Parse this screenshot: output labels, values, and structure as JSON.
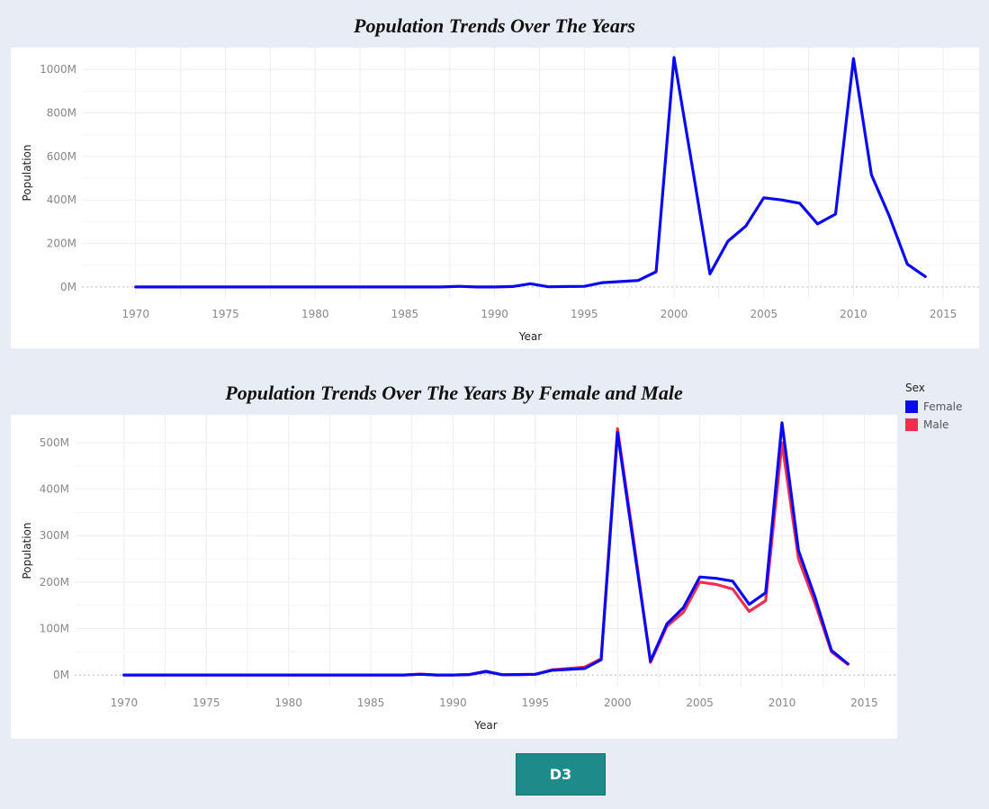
{
  "button": {
    "label": "D3"
  },
  "colors": {
    "female": "#0a0af0",
    "male": "#f03050",
    "background": "#e8ecf4"
  },
  "legend": {
    "title": "Sex",
    "items": [
      {
        "label": "Female",
        "color": "#0a0af0"
      },
      {
        "label": "Male",
        "color": "#f03050"
      }
    ]
  },
  "chart_data": [
    {
      "type": "line",
      "title": "Population Trends Over The Years",
      "xlabel": "Year",
      "ylabel": "Population",
      "xlim": [
        1967,
        2017
      ],
      "ylim": [
        -50000000,
        1100000000
      ],
      "x_ticks": [
        1970,
        1975,
        1980,
        1985,
        1990,
        1995,
        2000,
        2005,
        2010,
        2015
      ],
      "y_ticks": [
        0,
        200000000,
        400000000,
        600000000,
        800000000,
        1000000000
      ],
      "y_tick_labels": [
        "0M",
        "200M",
        "400M",
        "600M",
        "800M",
        "1000M"
      ],
      "grid": true,
      "x": [
        1970,
        1971,
        1972,
        1973,
        1974,
        1975,
        1976,
        1977,
        1978,
        1979,
        1980,
        1981,
        1982,
        1983,
        1984,
        1985,
        1986,
        1987,
        1988,
        1989,
        1990,
        1991,
        1992,
        1993,
        1994,
        1995,
        1996,
        1997,
        1998,
        1999,
        2000,
        2001,
        2002,
        2003,
        2004,
        2005,
        2006,
        2007,
        2008,
        2009,
        2010,
        2011,
        2012,
        2013,
        2014
      ],
      "series": [
        {
          "color": "#0a0af0",
          "values": [
            0,
            0,
            0,
            0,
            0,
            0,
            0,
            0,
            0,
            0,
            0,
            0,
            0,
            0,
            0,
            0,
            0,
            0,
            3000000,
            0,
            0,
            2000000,
            15000000,
            1000000,
            2000000,
            3000000,
            20000000,
            25000000,
            30000000,
            70000000,
            1055000000,
            560000000,
            60000000,
            210000000,
            280000000,
            410000000,
            400000000,
            385000000,
            290000000,
            335000000,
            1050000000,
            515000000,
            325000000,
            105000000,
            48000000
          ]
        }
      ]
    },
    {
      "type": "line",
      "title": "Population Trends Over The Years By Female and Male",
      "xlabel": "Year",
      "ylabel": "Population",
      "xlim": [
        1967,
        2017
      ],
      "ylim": [
        -25000000,
        560000000
      ],
      "x_ticks": [
        1970,
        1975,
        1980,
        1985,
        1990,
        1995,
        2000,
        2005,
        2010,
        2015
      ],
      "y_ticks": [
        0,
        100000000,
        200000000,
        300000000,
        400000000,
        500000000
      ],
      "y_tick_labels": [
        "0M",
        "100M",
        "200M",
        "300M",
        "400M",
        "500M"
      ],
      "grid": true,
      "legend_position": "top-right",
      "x": [
        1970,
        1971,
        1972,
        1973,
        1974,
        1975,
        1976,
        1977,
        1978,
        1979,
        1980,
        1981,
        1982,
        1983,
        1984,
        1985,
        1986,
        1987,
        1988,
        1989,
        1990,
        1991,
        1992,
        1993,
        1994,
        1995,
        1996,
        1997,
        1998,
        1999,
        2000,
        2001,
        2002,
        2003,
        2004,
        2005,
        2006,
        2007,
        2008,
        2009,
        2010,
        2011,
        2012,
        2013,
        2014
      ],
      "series": [
        {
          "name": "Male",
          "color": "#f03050",
          "values": [
            0,
            0,
            0,
            0,
            0,
            0,
            0,
            0,
            0,
            0,
            0,
            0,
            0,
            0,
            0,
            0,
            0,
            0,
            2000000,
            0,
            0,
            1000000,
            7000000,
            500000,
            1000000,
            1500000,
            11000000,
            14000000,
            17000000,
            35000000,
            530000000,
            285000000,
            27000000,
            105000000,
            135000000,
            200000000,
            195000000,
            185000000,
            137000000,
            160000000,
            500000000,
            250000000,
            155000000,
            50000000,
            23000000
          ]
        },
        {
          "name": "Female",
          "color": "#0a0af0",
          "values": [
            0,
            0,
            0,
            0,
            0,
            0,
            0,
            0,
            0,
            0,
            0,
            0,
            0,
            0,
            0,
            0,
            0,
            0,
            1500000,
            0,
            0,
            1000000,
            8000000,
            500000,
            1000000,
            1500000,
            10000000,
            12000000,
            14000000,
            33000000,
            522000000,
            275000000,
            30000000,
            110000000,
            145000000,
            211000000,
            208000000,
            202000000,
            152000000,
            177000000,
            543000000,
            268000000,
            168000000,
            53000000,
            24000000
          ]
        }
      ]
    }
  ]
}
